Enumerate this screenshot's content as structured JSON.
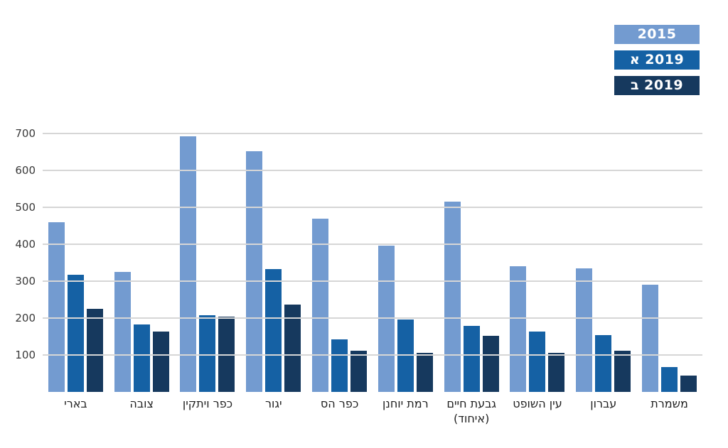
{
  "chart_data": {
    "type": "bar",
    "title": "",
    "xlabel": "",
    "ylabel": "",
    "direction": "rtl",
    "grid": "horizontal",
    "legend_position": "top-right",
    "ylim": [
      0,
      700
    ],
    "yticks": [
      100,
      200,
      300,
      400,
      500,
      600,
      700
    ],
    "categories": [
      "בארי",
      "צובה",
      "כפר ויתקין",
      "יגור",
      "כפר הס",
      "רמת יוחנן",
      "גבעת חיים\n(איחוד)",
      "עין השופט",
      "עברון",
      "משמרת"
    ],
    "series": [
      {
        "name": "2015",
        "color": "#739BD0",
        "values": [
          460,
          325,
          693,
          652,
          470,
          397,
          515,
          340,
          335,
          291
        ]
      },
      {
        "name": "2019 א",
        "color": "#1561A4",
        "values": [
          318,
          183,
          207,
          332,
          143,
          197,
          178,
          163,
          153,
          68
        ]
      },
      {
        "name": "2019 ב",
        "color": "#16395E",
        "values": [
          225,
          164,
          204,
          237,
          112,
          105,
          152,
          105,
          112,
          45
        ]
      }
    ]
  },
  "colors": {
    "background": "#FFFFFF",
    "gridline": "#D6D6D6",
    "tick_label": "#3A3A3A",
    "axis_label": "#1F1F1F",
    "legend_text": "#FFFFFF"
  }
}
